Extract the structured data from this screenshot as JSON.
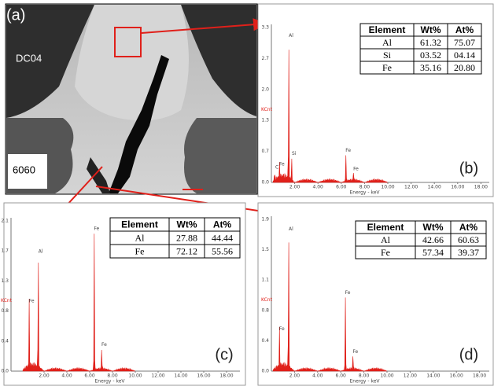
{
  "panel_a": {
    "label": "(a)",
    "top_label": "DC04",
    "bottom_label": "6060"
  },
  "panels": {
    "b": {
      "label": "(b)",
      "y_unit": "KCnt",
      "y_ticks": [
        "3.3",
        "2.7",
        "2.0",
        "1.3",
        "0.7",
        "0.0"
      ],
      "x_ticks": [
        "2.00",
        "4.00",
        "6.00",
        "8.00",
        "10.00",
        "12.00",
        "14.00",
        "16.00",
        "18.00"
      ],
      "x_label": "Energy - keV",
      "peak_labels": [
        "C",
        "Fe",
        "Al",
        "Si",
        "Fe",
        "Fe"
      ],
      "table": {
        "header": [
          "Element",
          "Wt%",
          "At%"
        ],
        "rows": [
          [
            "Al",
            "61.32",
            "75.07"
          ],
          [
            "Si",
            "03.52",
            "04.14"
          ],
          [
            "Fe",
            "35.16",
            "20.80"
          ]
        ]
      }
    },
    "c": {
      "label": "(c)",
      "y_unit": "KCnt",
      "y_ticks": [
        "2.1",
        "1.7",
        "1.3",
        "0.8",
        "0.4",
        "0.0"
      ],
      "x_ticks": [
        "2.00",
        "4.00",
        "6.00",
        "8.00",
        "10.00",
        "12.00",
        "14.00",
        "16.00",
        "18.00"
      ],
      "x_label": "Energy - keV",
      "peak_labels": [
        "Fe",
        "Al",
        "Fe",
        "Fe"
      ],
      "table": {
        "header": [
          "Element",
          "Wt%",
          "At%"
        ],
        "rows": [
          [
            "Al",
            "27.88",
            "44.44"
          ],
          [
            "Fe",
            "72.12",
            "55.56"
          ]
        ]
      }
    },
    "d": {
      "label": "(d)",
      "y_unit": "KCnt",
      "y_ticks": [
        "1.9",
        "1.5",
        "1.1",
        "0.8",
        "0.4",
        "0.0"
      ],
      "x_ticks": [
        "2.00",
        "4.00",
        "6.00",
        "8.00",
        "10.00",
        "12.00",
        "14.00",
        "16.00",
        "18.00"
      ],
      "x_label": "Energy - keV",
      "peak_labels": [
        "Fe",
        "Al",
        "Fe",
        "Fe"
      ],
      "table": {
        "header": [
          "Element",
          "Wt%",
          "At%"
        ],
        "rows": [
          [
            "Al",
            "42.66",
            "60.63"
          ],
          [
            "Fe",
            "57.34",
            "39.37"
          ]
        ]
      }
    }
  }
}
